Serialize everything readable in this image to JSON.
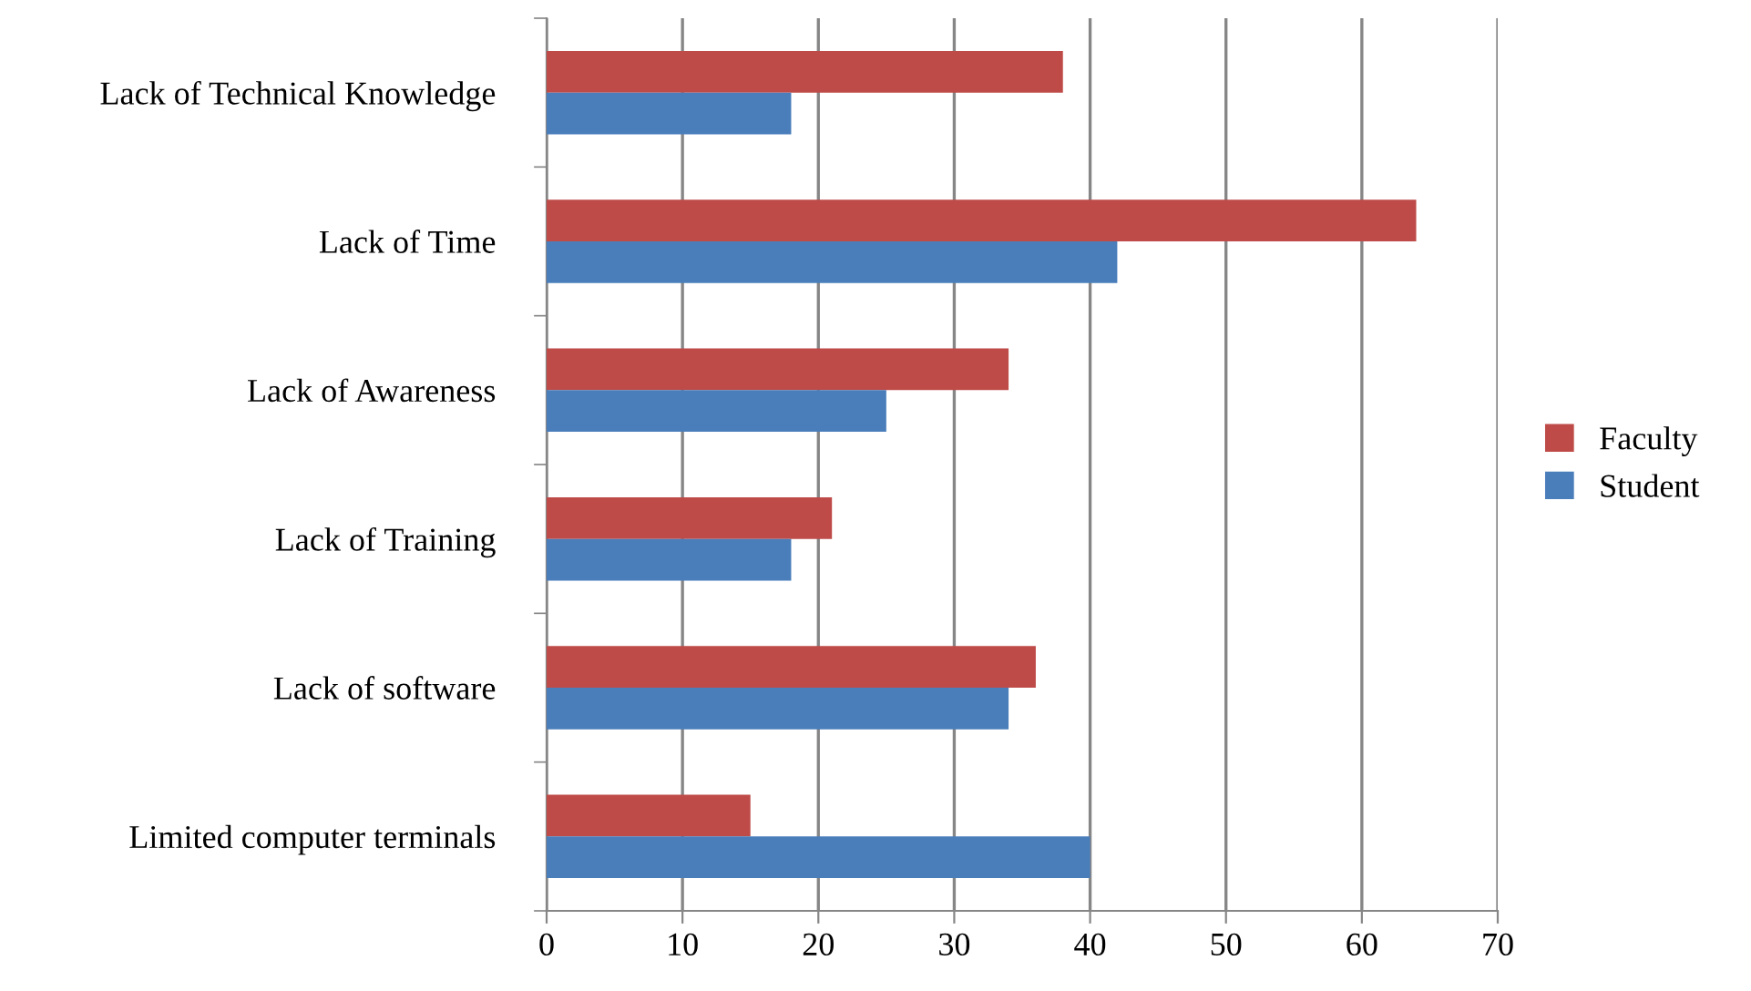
{
  "chart_data": {
    "type": "bar",
    "orientation": "horizontal",
    "categories": [
      "Lack of Technical Knowledge",
      "Lack of Time",
      "Lack of Awareness",
      "Lack of Training",
      "Lack of software",
      "Limited computer terminals"
    ],
    "series": [
      {
        "name": "Faculty",
        "color": "#be4b48",
        "values": [
          38,
          64,
          34,
          21,
          36,
          15
        ]
      },
      {
        "name": "Student",
        "color": "#4a7ebb",
        "values": [
          18,
          42,
          25,
          18,
          34,
          40
        ]
      }
    ],
    "xlim": [
      0,
      70
    ],
    "xticks": [
      0,
      10,
      20,
      30,
      40,
      50,
      60,
      70
    ],
    "grid": "x",
    "legend": "right"
  }
}
